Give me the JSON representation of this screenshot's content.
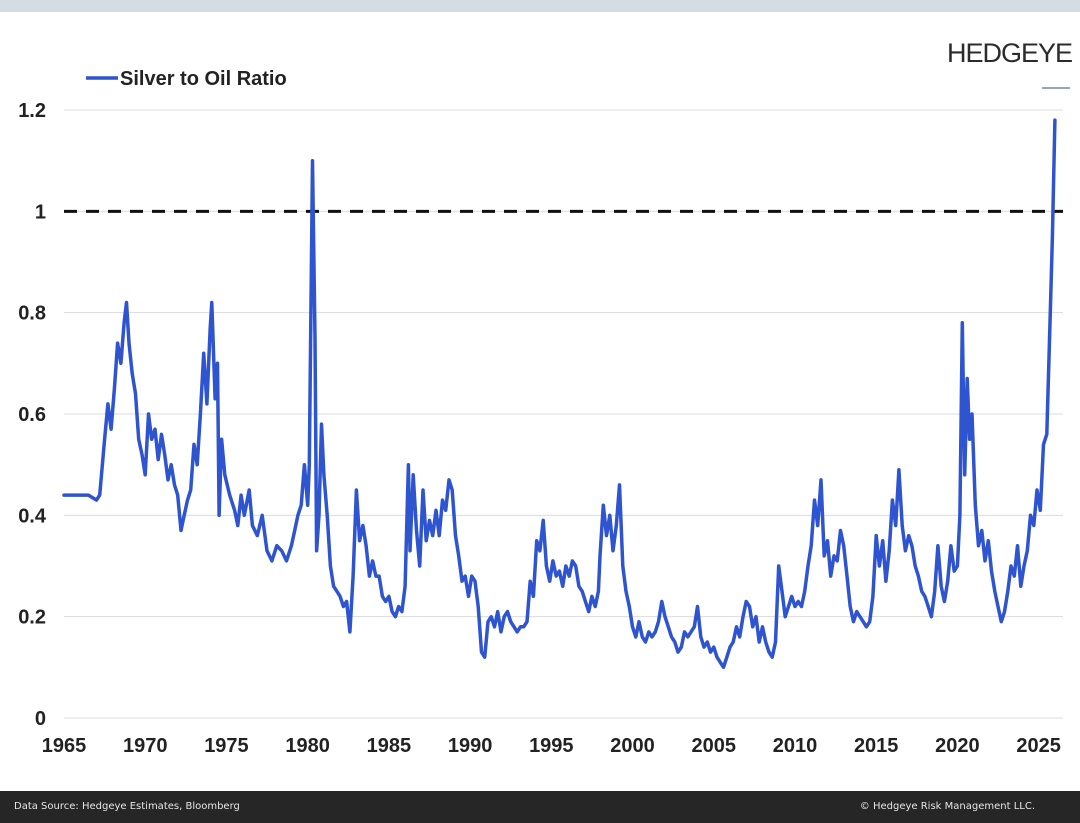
{
  "brand": "HEDGEYE",
  "footer": {
    "source": "Data Source: Hedgeye Estimates, Bloomberg",
    "copyright": "© Hedgeye Risk Management LLC."
  },
  "chart_data": {
    "type": "line",
    "title": "",
    "xlabel": "",
    "ylabel": "",
    "xlim": [
      1965,
      2026.5
    ],
    "ylim": [
      0,
      1.2
    ],
    "x_ticks": [
      "1965",
      "1970",
      "1975",
      "1980",
      "1985",
      "1990",
      "1995",
      "2000",
      "2005",
      "2010",
      "2015",
      "2020",
      "2025"
    ],
    "y_ticks": [
      "0",
      "0.2",
      "0.4",
      "0.6",
      "0.8",
      "1",
      "1.2"
    ],
    "grid": "horizontal",
    "legend_position": "top-left",
    "reference_line": {
      "y": 1.0,
      "style": "dashed",
      "color": "#111111"
    },
    "series": [
      {
        "name": "Silver to Oil Ratio",
        "color": "#2f54cf",
        "points": [
          [
            1965.0,
            0.44
          ],
          [
            1965.5,
            0.44
          ],
          [
            1966.0,
            0.44
          ],
          [
            1966.5,
            0.44
          ],
          [
            1967.0,
            0.43
          ],
          [
            1967.2,
            0.44
          ],
          [
            1967.5,
            0.55
          ],
          [
            1967.7,
            0.62
          ],
          [
            1967.9,
            0.57
          ],
          [
            1968.1,
            0.65
          ],
          [
            1968.3,
            0.74
          ],
          [
            1968.5,
            0.7
          ],
          [
            1968.7,
            0.78
          ],
          [
            1968.85,
            0.82
          ],
          [
            1969.0,
            0.74
          ],
          [
            1969.2,
            0.68
          ],
          [
            1969.4,
            0.64
          ],
          [
            1969.6,
            0.55
          ],
          [
            1969.8,
            0.52
          ],
          [
            1970.0,
            0.48
          ],
          [
            1970.2,
            0.6
          ],
          [
            1970.4,
            0.55
          ],
          [
            1970.6,
            0.57
          ],
          [
            1970.8,
            0.51
          ],
          [
            1971.0,
            0.56
          ],
          [
            1971.2,
            0.52
          ],
          [
            1971.4,
            0.47
          ],
          [
            1971.6,
            0.5
          ],
          [
            1971.8,
            0.46
          ],
          [
            1972.0,
            0.44
          ],
          [
            1972.2,
            0.37
          ],
          [
            1972.4,
            0.4
          ],
          [
            1972.6,
            0.43
          ],
          [
            1972.8,
            0.45
          ],
          [
            1973.0,
            0.54
          ],
          [
            1973.2,
            0.5
          ],
          [
            1973.4,
            0.6
          ],
          [
            1973.6,
            0.72
          ],
          [
            1973.8,
            0.62
          ],
          [
            1974.0,
            0.77
          ],
          [
            1974.1,
            0.82
          ],
          [
            1974.3,
            0.63
          ],
          [
            1974.45,
            0.7
          ],
          [
            1974.55,
            0.4
          ],
          [
            1974.7,
            0.55
          ],
          [
            1974.9,
            0.48
          ],
          [
            1975.2,
            0.44
          ],
          [
            1975.5,
            0.41
          ],
          [
            1975.7,
            0.38
          ],
          [
            1975.9,
            0.44
          ],
          [
            1976.1,
            0.4
          ],
          [
            1976.4,
            0.45
          ],
          [
            1976.6,
            0.38
          ],
          [
            1976.9,
            0.36
          ],
          [
            1977.2,
            0.4
          ],
          [
            1977.5,
            0.33
          ],
          [
            1977.8,
            0.31
          ],
          [
            1978.1,
            0.34
          ],
          [
            1978.4,
            0.33
          ],
          [
            1978.7,
            0.31
          ],
          [
            1979.0,
            0.34
          ],
          [
            1979.2,
            0.37
          ],
          [
            1979.4,
            0.4
          ],
          [
            1979.6,
            0.42
          ],
          [
            1979.8,
            0.5
          ],
          [
            1980.0,
            0.42
          ],
          [
            1980.1,
            0.5
          ],
          [
            1980.2,
            0.8
          ],
          [
            1980.3,
            1.1
          ],
          [
            1980.45,
            0.75
          ],
          [
            1980.55,
            0.33
          ],
          [
            1980.7,
            0.4
          ],
          [
            1980.85,
            0.58
          ],
          [
            1981.0,
            0.48
          ],
          [
            1981.2,
            0.4
          ],
          [
            1981.4,
            0.3
          ],
          [
            1981.6,
            0.26
          ],
          [
            1981.8,
            0.25
          ],
          [
            1982.0,
            0.24
          ],
          [
            1982.2,
            0.22
          ],
          [
            1982.4,
            0.23
          ],
          [
            1982.6,
            0.17
          ],
          [
            1982.8,
            0.28
          ],
          [
            1983.0,
            0.45
          ],
          [
            1983.2,
            0.35
          ],
          [
            1983.4,
            0.38
          ],
          [
            1983.6,
            0.34
          ],
          [
            1983.8,
            0.28
          ],
          [
            1984.0,
            0.31
          ],
          [
            1984.2,
            0.28
          ],
          [
            1984.4,
            0.28
          ],
          [
            1984.6,
            0.24
          ],
          [
            1984.8,
            0.23
          ],
          [
            1985.0,
            0.24
          ],
          [
            1985.2,
            0.21
          ],
          [
            1985.4,
            0.2
          ],
          [
            1985.6,
            0.22
          ],
          [
            1985.8,
            0.21
          ],
          [
            1986.0,
            0.26
          ],
          [
            1986.2,
            0.5
          ],
          [
            1986.3,
            0.33
          ],
          [
            1986.5,
            0.48
          ],
          [
            1986.7,
            0.37
          ],
          [
            1986.9,
            0.3
          ],
          [
            1987.1,
            0.45
          ],
          [
            1987.3,
            0.35
          ],
          [
            1987.5,
            0.39
          ],
          [
            1987.7,
            0.36
          ],
          [
            1987.9,
            0.41
          ],
          [
            1988.1,
            0.36
          ],
          [
            1988.3,
            0.43
          ],
          [
            1988.5,
            0.41
          ],
          [
            1988.7,
            0.47
          ],
          [
            1988.9,
            0.45
          ],
          [
            1989.1,
            0.36
          ],
          [
            1989.3,
            0.32
          ],
          [
            1989.5,
            0.27
          ],
          [
            1989.7,
            0.28
          ],
          [
            1989.9,
            0.24
          ],
          [
            1990.1,
            0.28
          ],
          [
            1990.3,
            0.27
          ],
          [
            1990.5,
            0.22
          ],
          [
            1990.7,
            0.13
          ],
          [
            1990.9,
            0.12
          ],
          [
            1991.1,
            0.19
          ],
          [
            1991.3,
            0.2
          ],
          [
            1991.5,
            0.18
          ],
          [
            1991.7,
            0.21
          ],
          [
            1991.9,
            0.17
          ],
          [
            1992.1,
            0.2
          ],
          [
            1992.3,
            0.21
          ],
          [
            1992.5,
            0.19
          ],
          [
            1992.7,
            0.18
          ],
          [
            1992.9,
            0.17
          ],
          [
            1993.1,
            0.18
          ],
          [
            1993.3,
            0.18
          ],
          [
            1993.5,
            0.19
          ],
          [
            1993.7,
            0.27
          ],
          [
            1993.9,
            0.24
          ],
          [
            1994.1,
            0.35
          ],
          [
            1994.3,
            0.33
          ],
          [
            1994.5,
            0.39
          ],
          [
            1994.7,
            0.3
          ],
          [
            1994.9,
            0.27
          ],
          [
            1995.1,
            0.31
          ],
          [
            1995.3,
            0.28
          ],
          [
            1995.5,
            0.29
          ],
          [
            1995.7,
            0.26
          ],
          [
            1995.9,
            0.3
          ],
          [
            1996.1,
            0.28
          ],
          [
            1996.3,
            0.31
          ],
          [
            1996.5,
            0.3
          ],
          [
            1996.7,
            0.26
          ],
          [
            1996.9,
            0.25
          ],
          [
            1997.1,
            0.23
          ],
          [
            1997.3,
            0.21
          ],
          [
            1997.5,
            0.24
          ],
          [
            1997.7,
            0.22
          ],
          [
            1997.9,
            0.25
          ],
          [
            1998.0,
            0.32
          ],
          [
            1998.2,
            0.42
          ],
          [
            1998.4,
            0.36
          ],
          [
            1998.6,
            0.4
          ],
          [
            1998.8,
            0.33
          ],
          [
            1999.0,
            0.38
          ],
          [
            1999.2,
            0.46
          ],
          [
            1999.4,
            0.3
          ],
          [
            1999.6,
            0.25
          ],
          [
            1999.8,
            0.22
          ],
          [
            2000.0,
            0.18
          ],
          [
            2000.2,
            0.16
          ],
          [
            2000.4,
            0.19
          ],
          [
            2000.6,
            0.16
          ],
          [
            2000.8,
            0.15
          ],
          [
            2001.0,
            0.17
          ],
          [
            2001.2,
            0.16
          ],
          [
            2001.4,
            0.17
          ],
          [
            2001.6,
            0.19
          ],
          [
            2001.8,
            0.23
          ],
          [
            2002.0,
            0.2
          ],
          [
            2002.2,
            0.18
          ],
          [
            2002.4,
            0.16
          ],
          [
            2002.6,
            0.15
          ],
          [
            2002.8,
            0.13
          ],
          [
            2003.0,
            0.14
          ],
          [
            2003.2,
            0.17
          ],
          [
            2003.4,
            0.16
          ],
          [
            2003.6,
            0.17
          ],
          [
            2003.8,
            0.18
          ],
          [
            2004.0,
            0.22
          ],
          [
            2004.2,
            0.16
          ],
          [
            2004.4,
            0.14
          ],
          [
            2004.6,
            0.15
          ],
          [
            2004.8,
            0.13
          ],
          [
            2005.0,
            0.14
          ],
          [
            2005.2,
            0.12
          ],
          [
            2005.4,
            0.11
          ],
          [
            2005.6,
            0.1
          ],
          [
            2005.8,
            0.12
          ],
          [
            2006.0,
            0.14
          ],
          [
            2006.2,
            0.15
          ],
          [
            2006.4,
            0.18
          ],
          [
            2006.6,
            0.16
          ],
          [
            2006.8,
            0.2
          ],
          [
            2007.0,
            0.23
          ],
          [
            2007.2,
            0.22
          ],
          [
            2007.4,
            0.18
          ],
          [
            2007.6,
            0.2
          ],
          [
            2007.8,
            0.15
          ],
          [
            2008.0,
            0.18
          ],
          [
            2008.2,
            0.15
          ],
          [
            2008.4,
            0.13
          ],
          [
            2008.6,
            0.12
          ],
          [
            2008.8,
            0.15
          ],
          [
            2009.0,
            0.3
          ],
          [
            2009.2,
            0.25
          ],
          [
            2009.4,
            0.2
          ],
          [
            2009.6,
            0.22
          ],
          [
            2009.8,
            0.24
          ],
          [
            2010.0,
            0.22
          ],
          [
            2010.2,
            0.23
          ],
          [
            2010.4,
            0.22
          ],
          [
            2010.6,
            0.25
          ],
          [
            2010.8,
            0.3
          ],
          [
            2011.0,
            0.34
          ],
          [
            2011.2,
            0.43
          ],
          [
            2011.4,
            0.38
          ],
          [
            2011.6,
            0.47
          ],
          [
            2011.8,
            0.32
          ],
          [
            2012.0,
            0.35
          ],
          [
            2012.2,
            0.28
          ],
          [
            2012.4,
            0.32
          ],
          [
            2012.6,
            0.31
          ],
          [
            2012.8,
            0.37
          ],
          [
            2013.0,
            0.34
          ],
          [
            2013.2,
            0.28
          ],
          [
            2013.4,
            0.22
          ],
          [
            2013.6,
            0.19
          ],
          [
            2013.8,
            0.21
          ],
          [
            2014.0,
            0.2
          ],
          [
            2014.2,
            0.19
          ],
          [
            2014.4,
            0.18
          ],
          [
            2014.6,
            0.19
          ],
          [
            2014.8,
            0.24
          ],
          [
            2015.0,
            0.36
          ],
          [
            2015.2,
            0.3
          ],
          [
            2015.4,
            0.35
          ],
          [
            2015.6,
            0.27
          ],
          [
            2015.8,
            0.33
          ],
          [
            2016.0,
            0.43
          ],
          [
            2016.2,
            0.38
          ],
          [
            2016.4,
            0.49
          ],
          [
            2016.6,
            0.38
          ],
          [
            2016.8,
            0.33
          ],
          [
            2017.0,
            0.36
          ],
          [
            2017.2,
            0.34
          ],
          [
            2017.4,
            0.3
          ],
          [
            2017.6,
            0.28
          ],
          [
            2017.8,
            0.25
          ],
          [
            2018.0,
            0.24
          ],
          [
            2018.2,
            0.22
          ],
          [
            2018.4,
            0.2
          ],
          [
            2018.6,
            0.25
          ],
          [
            2018.8,
            0.34
          ],
          [
            2019.0,
            0.26
          ],
          [
            2019.2,
            0.23
          ],
          [
            2019.4,
            0.27
          ],
          [
            2019.6,
            0.34
          ],
          [
            2019.8,
            0.29
          ],
          [
            2020.0,
            0.3
          ],
          [
            2020.15,
            0.4
          ],
          [
            2020.3,
            0.78
          ],
          [
            2020.45,
            0.48
          ],
          [
            2020.6,
            0.67
          ],
          [
            2020.75,
            0.55
          ],
          [
            2020.9,
            0.6
          ],
          [
            2021.1,
            0.42
          ],
          [
            2021.3,
            0.34
          ],
          [
            2021.5,
            0.37
          ],
          [
            2021.7,
            0.31
          ],
          [
            2021.9,
            0.35
          ],
          [
            2022.1,
            0.29
          ],
          [
            2022.3,
            0.25
          ],
          [
            2022.5,
            0.22
          ],
          [
            2022.7,
            0.19
          ],
          [
            2022.9,
            0.21
          ],
          [
            2023.1,
            0.25
          ],
          [
            2023.3,
            0.3
          ],
          [
            2023.5,
            0.28
          ],
          [
            2023.7,
            0.34
          ],
          [
            2023.9,
            0.26
          ],
          [
            2024.1,
            0.3
          ],
          [
            2024.3,
            0.33
          ],
          [
            2024.5,
            0.4
          ],
          [
            2024.7,
            0.38
          ],
          [
            2024.9,
            0.45
          ],
          [
            2025.1,
            0.41
          ],
          [
            2025.3,
            0.54
          ],
          [
            2025.5,
            0.56
          ],
          [
            2025.7,
            0.78
          ],
          [
            2025.85,
            0.95
          ],
          [
            2026.0,
            1.18
          ]
        ]
      }
    ]
  }
}
